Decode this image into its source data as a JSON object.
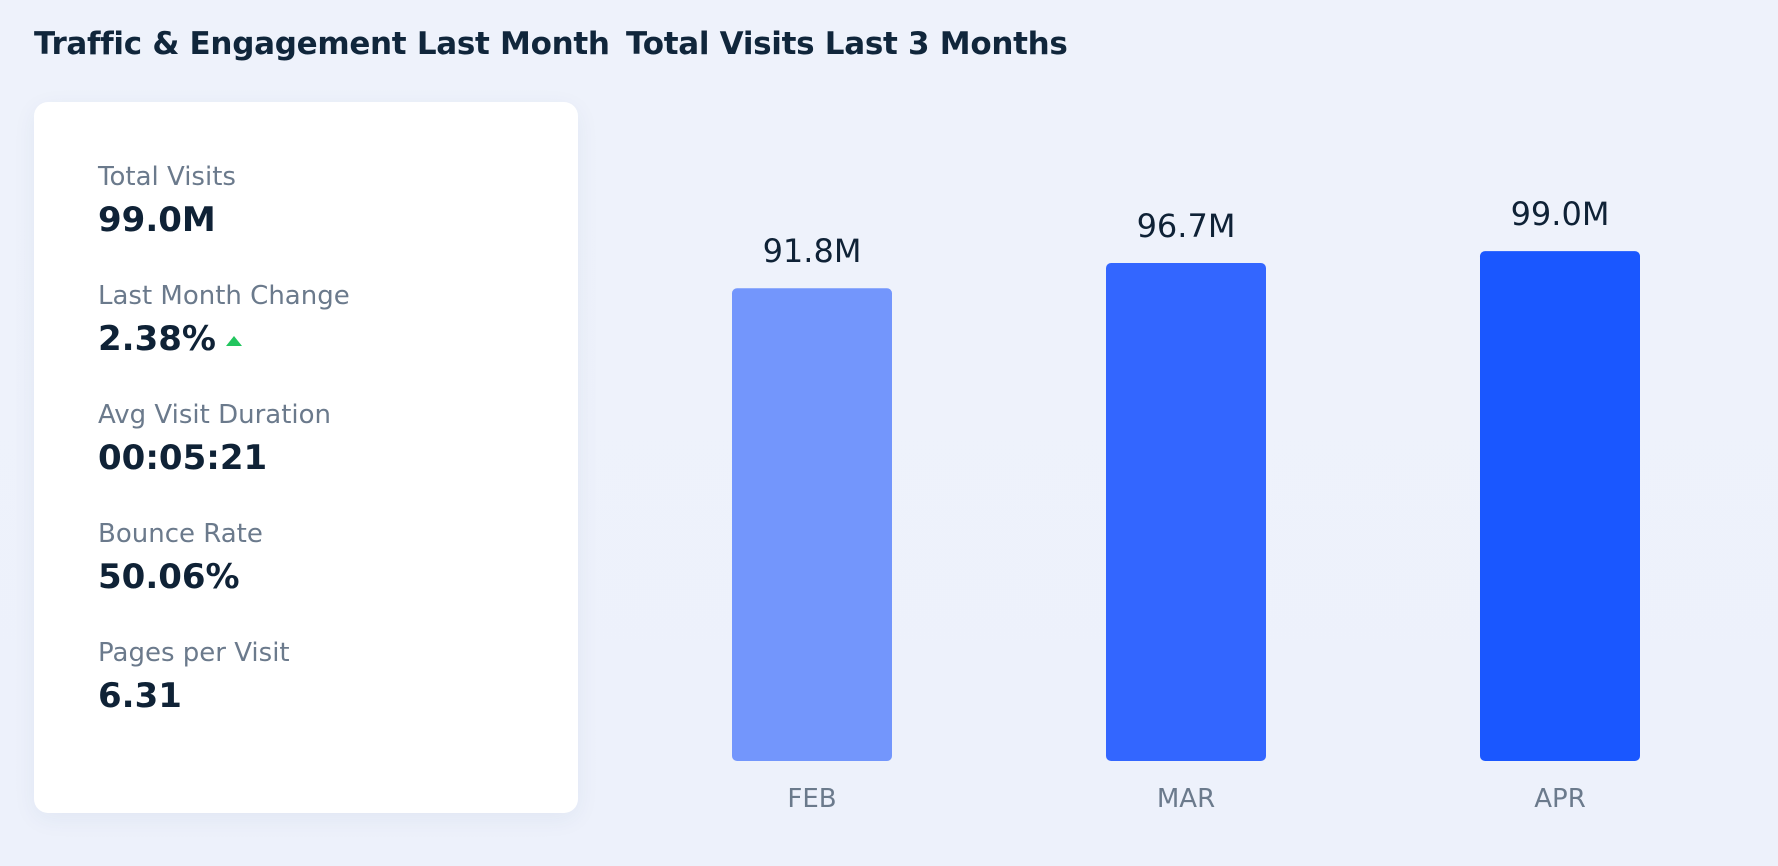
{
  "panels": {
    "left_title": "Traffic & Engagement Last Month",
    "right_title": "Total Visits Last 3 Months"
  },
  "metrics": [
    {
      "label": "Total Visits",
      "value": "99.0M"
    },
    {
      "label": "Last Month Change",
      "value": "2.38%",
      "trend": "up",
      "trend_color": "#22c55e",
      "trend_icon": "triangle-up-icon"
    },
    {
      "label": "Avg Visit Duration",
      "value": "00:05:21"
    },
    {
      "label": "Bounce Rate",
      "value": "50.06%"
    },
    {
      "label": "Pages per Visit",
      "value": "6.31"
    }
  ],
  "chart_data": {
    "type": "bar",
    "title": "Total Visits Last 3 Months",
    "categories": [
      "FEB",
      "MAR",
      "APR"
    ],
    "values": [
      91.8,
      96.7,
      99.0
    ],
    "value_labels": [
      "91.8M",
      "96.7M",
      "99.0M"
    ],
    "unit": "M",
    "colors": [
      "#7396fc",
      "#3366ff",
      "#1a57ff"
    ],
    "grid": false,
    "legend": "none"
  }
}
